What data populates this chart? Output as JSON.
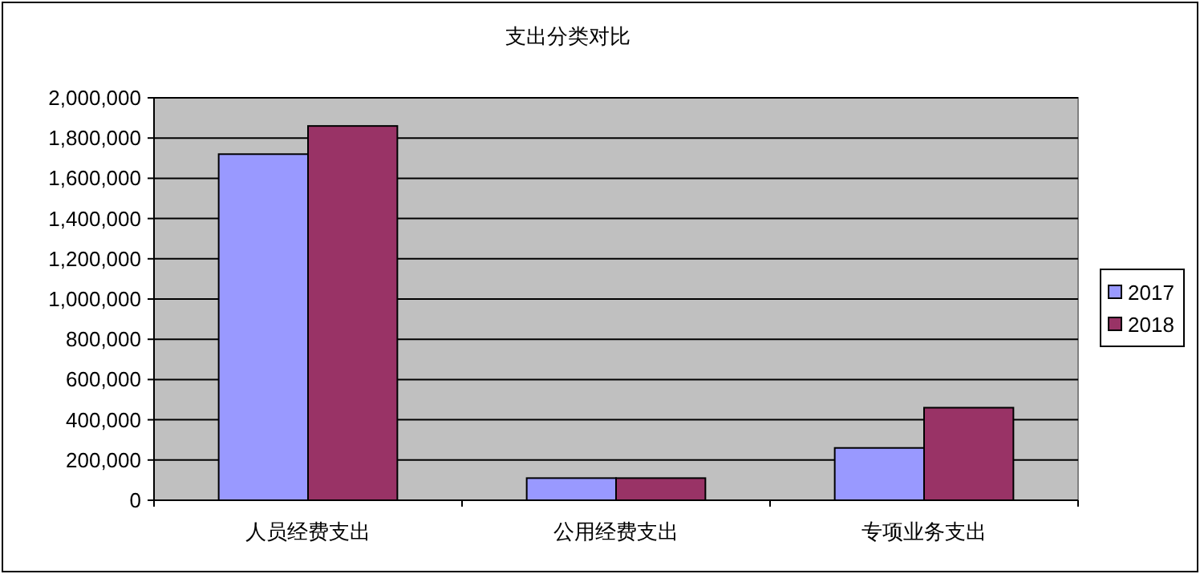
{
  "chart_data": {
    "type": "bar",
    "title": "支出分类对比",
    "categories": [
      "人员经费支出",
      "公用经费支出",
      "专项业务支出"
    ],
    "series": [
      {
        "name": "2017",
        "color": "#9999ff",
        "values": [
          1720000,
          110000,
          260000
        ]
      },
      {
        "name": "2018",
        "color": "#993366",
        "values": [
          1860000,
          110000,
          460000
        ]
      }
    ],
    "ylim": [
      0,
      2000000
    ],
    "yticks": [
      0,
      {
        "value": 200000,
        "label": "200,000"
      },
      {
        "value": 400000,
        "label": "400,000"
      },
      {
        "value": 600000,
        "label": "600,000"
      },
      {
        "value": 800000,
        "label": "800,000"
      },
      {
        "value": 1000000,
        "label": "1,000,000"
      },
      {
        "value": 1200000,
        "label": "1,200,000"
      },
      {
        "value": 1400000,
        "label": "1,400,000"
      },
      {
        "value": 1600000,
        "label": "1,600,000"
      },
      {
        "value": 1800000,
        "label": "1,800,000"
      },
      {
        "value": 2000000,
        "label": "2,000,000"
      }
    ],
    "grid": "y",
    "legend": "right"
  }
}
